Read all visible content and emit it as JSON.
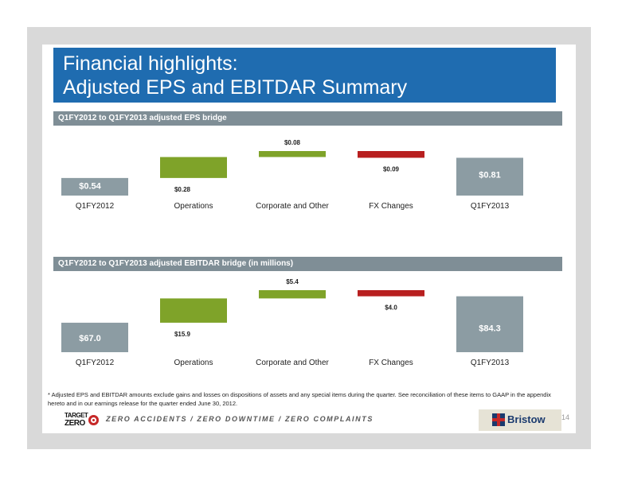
{
  "slide": {
    "title_line1": "Financial highlights:",
    "title_line2": "Adjusted EPS and EBITDAR Summary",
    "footnote": "*  Adjusted EPS and EBITDAR amounts exclude gains and losses on dispositions of assets and any special items during the quarter.  See reconciliation of these items to GAAP in the appendix hereto and in our earnings release for the quarter ended June 30, 2012.",
    "slogan": "ZERO ACCIDENTS / ZERO DOWNTIME / ZERO COMPLAINTS",
    "target_zero_line1": "TARGET",
    "target_zero_line2": "ZERO",
    "brand": "Bristow",
    "page_number": "14"
  },
  "colors": {
    "header_blue": "#1f6cb0",
    "section_gray": "#7f8e96",
    "total_bar": "#8c9ca3",
    "increase": "#7fa329",
    "decrease": "#b81f1f"
  },
  "chart_data": [
    {
      "type": "bar",
      "subtype": "waterfall",
      "title": "Q1FY2012 to Q1FY2013 adjusted EPS bridge",
      "categories": [
        "Q1FY2012",
        "Operations",
        "Corporate and Other",
        "FX Changes",
        "Q1FY2013"
      ],
      "values": [
        0.54,
        0.28,
        0.08,
        -0.09,
        0.81
      ],
      "kinds": [
        "total",
        "increase",
        "increase",
        "decrease",
        "total"
      ],
      "labels": [
        "$0.54",
        "$0.28",
        "$0.08",
        "$0.09",
        "$0.81"
      ]
    },
    {
      "type": "bar",
      "subtype": "waterfall",
      "title": "Q1FY2012 to Q1FY2013 adjusted EBITDAR bridge (in millions)",
      "categories": [
        "Q1FY2012",
        "Operations",
        "Corporate and Other",
        "FX Changes",
        "Q1FY2013"
      ],
      "values": [
        67.0,
        15.9,
        5.4,
        -4.0,
        84.3
      ],
      "kinds": [
        "total",
        "increase",
        "increase",
        "decrease",
        "total"
      ],
      "labels": [
        "$67.0",
        "$15.9",
        "$5.4",
        "$4.0",
        "$84.3"
      ]
    }
  ]
}
